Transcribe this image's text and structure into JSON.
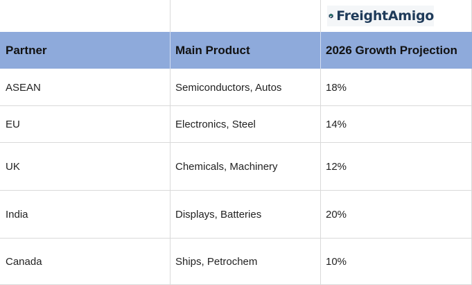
{
  "logo": {
    "text": "FreightAmigo",
    "icon": "freightamigo-logo-icon"
  },
  "table": {
    "headers": [
      "Partner",
      "Main Product",
      "2026 Growth Projection"
    ],
    "rows": [
      [
        "ASEAN",
        "Semiconductors, Autos",
        "18%"
      ],
      [
        "EU",
        "Electronics, Steel",
        "14%"
      ],
      [
        "UK",
        "Chemicals, Machinery",
        "12%"
      ],
      [
        "India",
        "Displays, Batteries",
        "20%"
      ],
      [
        "Canada",
        "Ships, Petrochem",
        "10%"
      ]
    ]
  },
  "colors": {
    "header_bg": "#8eaadb",
    "grid": "#d9d9d9",
    "logo_dark": "#1f3b5a",
    "logo_accent": "#2bb673"
  }
}
